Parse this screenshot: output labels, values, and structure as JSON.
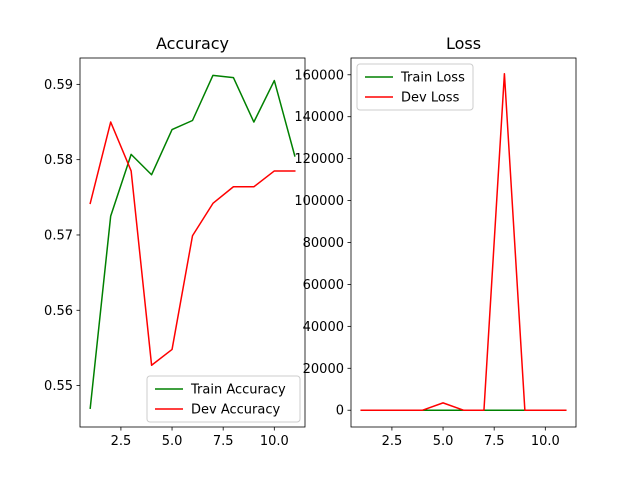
{
  "chart_data": [
    {
      "type": "line",
      "title": "Accuracy",
      "xlabel": "",
      "ylabel": "",
      "xlim": [
        0.5,
        11.5
      ],
      "ylim": [
        0.5445,
        0.5935
      ],
      "x_ticks": [
        2.5,
        5.0,
        7.5,
        10.0
      ],
      "x_tick_labels": [
        "2.5",
        "5.0",
        "7.5",
        "10.0"
      ],
      "y_ticks": [
        0.55,
        0.56,
        0.57,
        0.58,
        0.59
      ],
      "y_tick_labels": [
        "0.55",
        "0.56",
        "0.57",
        "0.58",
        "0.59"
      ],
      "grid": false,
      "legend_position": "lower-right",
      "series": [
        {
          "name": "Train Accuracy",
          "color": "#008000",
          "x": [
            1,
            2,
            3,
            4,
            5,
            6,
            7,
            8,
            9,
            10,
            11
          ],
          "values": [
            0.547,
            0.5725,
            0.5807,
            0.578,
            0.584,
            0.5852,
            0.5912,
            0.5909,
            0.585,
            0.5905,
            0.5805
          ]
        },
        {
          "name": "Dev Accuracy",
          "color": "#ff0000",
          "x": [
            1,
            2,
            3,
            4,
            5,
            6,
            7,
            8,
            9,
            10,
            11
          ],
          "values": [
            0.5742,
            0.585,
            0.5785,
            0.5527,
            0.5548,
            0.5699,
            0.5742,
            0.5764,
            0.5764,
            0.5785,
            0.5785
          ]
        }
      ]
    },
    {
      "type": "line",
      "title": "Loss",
      "xlabel": "",
      "ylabel": "",
      "xlim": [
        0.5,
        11.5
      ],
      "ylim": [
        -8000,
        168000
      ],
      "x_ticks": [
        2.5,
        5.0,
        7.5,
        10.0
      ],
      "x_tick_labels": [
        "2.5",
        "5.0",
        "7.5",
        "10.0"
      ],
      "y_ticks": [
        0,
        20000,
        40000,
        60000,
        80000,
        100000,
        120000,
        140000,
        160000
      ],
      "y_tick_labels": [
        "0",
        "20000",
        "40000",
        "60000",
        "80000",
        "100000",
        "120000",
        "140000",
        "160000"
      ],
      "grid": false,
      "legend_position": "upper-left",
      "series": [
        {
          "name": "Train Loss",
          "color": "#008000",
          "x": [
            1,
            2,
            3,
            4,
            5,
            6,
            7,
            8,
            9,
            10,
            11
          ],
          "values": [
            0,
            0,
            0,
            0,
            0,
            0,
            0,
            0,
            0,
            0,
            0
          ]
        },
        {
          "name": "Dev Loss",
          "color": "#ff0000",
          "x": [
            1,
            2,
            3,
            4,
            5,
            6,
            7,
            8,
            9,
            10,
            11
          ],
          "values": [
            0,
            0,
            0,
            0,
            3500,
            0,
            0,
            160500,
            0,
            0,
            0
          ]
        }
      ]
    }
  ]
}
